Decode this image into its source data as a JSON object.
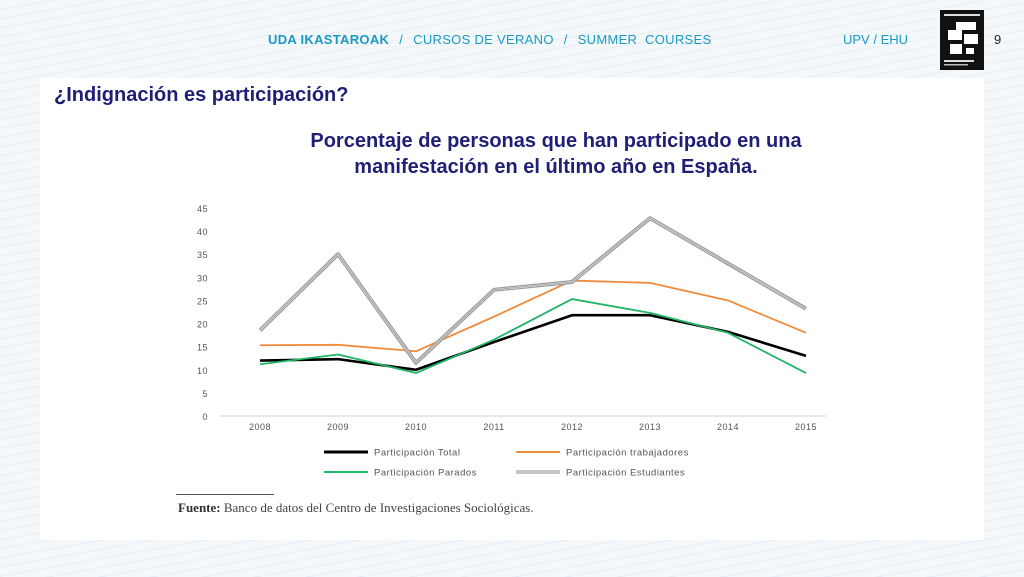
{
  "header": {
    "nav_brand": "UDA IKASTAROAK",
    "nav_sep1": "/",
    "nav_item2": "CURSOS DE VERANO",
    "nav_sep2": "/",
    "nav_item3": "SUMMER  COURSES",
    "university": "UPV / EHU",
    "page_number": "9"
  },
  "slide": {
    "title": "¿Indignación es participación?",
    "chart_heading_line1": "Porcentaje de personas que han participado en una",
    "chart_heading_line2": "manifestación en el último año en España.",
    "source_label": "Fuente:",
    "source_text": "Banco de datos del Centro de Investigaciones Sociológicas."
  },
  "chart_data": {
    "type": "line",
    "x": [
      "2008",
      "2009",
      "2010",
      "2011",
      "2012",
      "2013",
      "2014",
      "2015"
    ],
    "ylim": [
      0,
      45
    ],
    "yticks": [
      0,
      5,
      10,
      15,
      20,
      25,
      30,
      35,
      40,
      45
    ],
    "grid": false,
    "legend_position": "bottom",
    "series": [
      {
        "name": "Participación Total",
        "color": "#000000",
        "values": [
          12,
          12.3,
          10,
          16,
          21.8,
          21.8,
          18.2,
          13
        ]
      },
      {
        "name": "Participación trabajadores",
        "color": "#f08a3c",
        "values": [
          15.3,
          15.4,
          14,
          21.5,
          29.3,
          28.8,
          25,
          18
        ]
      },
      {
        "name": "Participación Parados",
        "color": "#22b566",
        "values": [
          11.2,
          13.3,
          9.3,
          16.5,
          25.3,
          22.3,
          18,
          9.3
        ]
      },
      {
        "name": "Participación Estudiantes",
        "color": "#555555",
        "values": [
          18.5,
          35,
          11.5,
          27.3,
          29,
          42.8,
          33,
          23.2
        ]
      }
    ]
  }
}
